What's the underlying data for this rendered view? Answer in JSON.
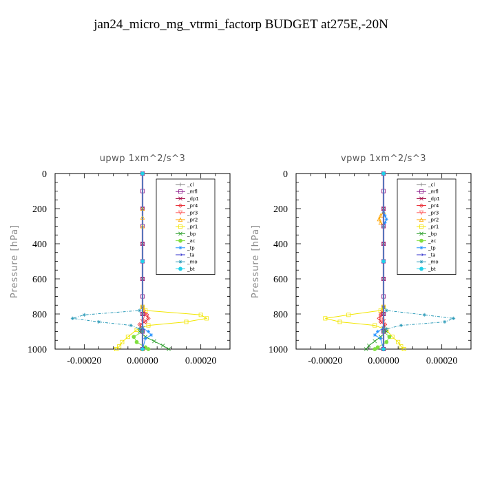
{
  "figure": {
    "title": "jan24_micro_mg_vtrmi_factorp  BUDGET at275E,-20N"
  },
  "chart_data": [
    {
      "type": "line",
      "title": "upwp   1xm^2/s^3",
      "ylabel": "Pressure [hPa]",
      "xlabel": "",
      "xlim": [
        -0.0003,
        0.0003
      ],
      "ylim": [
        1000,
        0
      ],
      "xticks": [
        "-0.00020",
        "0.00000",
        "0.00020"
      ],
      "xtick_values": [
        -0.0002,
        0,
        0.0002
      ],
      "yticks": [
        "0",
        "200",
        "400",
        "600",
        "800",
        "1000"
      ],
      "ytick_values": [
        0,
        200,
        400,
        600,
        800,
        1000
      ],
      "grid": false,
      "legend_position": "top-right",
      "series": [
        {
          "name": "_cl",
          "color": "#7f7f7f",
          "marker": "plus",
          "points": [
            [
              0,
              0
            ],
            [
              0,
              200
            ],
            [
              0,
              400
            ],
            [
              0,
              600
            ],
            [
              0,
              800
            ],
            [
              0,
              1000
            ]
          ]
        },
        {
          "name": "_mfl",
          "color": "#8b1a8b",
          "marker": "square",
          "points": [
            [
              0,
              0
            ],
            [
              0,
              100
            ],
            [
              0,
              200
            ],
            [
              0,
              300
            ],
            [
              0,
              400
            ],
            [
              0,
              500
            ],
            [
              0,
              600
            ],
            [
              0,
              700
            ],
            [
              0,
              800
            ],
            [
              0,
              900
            ],
            [
              0,
              1000
            ]
          ]
        },
        {
          "name": "_dp1",
          "color": "#a0003c",
          "marker": "x",
          "points": [
            [
              0,
              0
            ],
            [
              0,
              200
            ],
            [
              0,
              400
            ],
            [
              0,
              600
            ],
            [
              0,
              800
            ],
            [
              0,
              1000
            ]
          ]
        },
        {
          "name": "_pr4",
          "color": "#e8222a",
          "marker": "diamond",
          "points": [
            [
              0,
              760
            ],
            [
              5e-06,
              780
            ],
            [
              1.5e-05,
              805
            ],
            [
              2e-05,
              825
            ],
            [
              1e-05,
              845
            ],
            [
              -1e-05,
              860
            ],
            [
              -5e-06,
              880
            ],
            [
              0,
              900
            ],
            [
              0,
              1000
            ]
          ]
        },
        {
          "name": "_pr3",
          "color": "#ff6666",
          "marker": "triangle-down",
          "points": [
            [
              0,
              760
            ],
            [
              1e-05,
              800
            ],
            [
              0,
              840
            ],
            [
              0,
              900
            ],
            [
              0,
              1000
            ]
          ]
        },
        {
          "name": "_pr2",
          "color": "#ffa500",
          "marker": "triangle-up",
          "points": [
            [
              0,
              200
            ],
            [
              0,
              250
            ],
            [
              0,
              300
            ],
            [
              0,
              760
            ],
            [
              0,
              1000
            ]
          ]
        },
        {
          "name": "_pr1",
          "color": "#f2e600",
          "marker": "square",
          "points": [
            [
              0,
              760
            ],
            [
              1e-05,
              780
            ],
            [
              0.0002,
              805
            ],
            [
              0.00022,
              825
            ],
            [
              0.00015,
              845
            ],
            [
              2e-05,
              865
            ],
            [
              -2e-05,
              890
            ],
            [
              -5e-05,
              930
            ],
            [
              -7e-05,
              960
            ],
            [
              -8e-05,
              985
            ],
            [
              -9e-05,
              1000
            ]
          ]
        },
        {
          "name": "_bp",
          "color": "#2a9d2a",
          "marker": "x",
          "points": [
            [
              0,
              880
            ],
            [
              -1e-05,
              900
            ],
            [
              1e-05,
              930
            ],
            [
              4e-05,
              955
            ],
            [
              7e-05,
              980
            ],
            [
              9e-05,
              1000
            ]
          ]
        },
        {
          "name": "_ac",
          "color": "#7fdf3f",
          "marker": "circle",
          "points": [
            [
              0,
              900
            ],
            [
              -3e-05,
              930
            ],
            [
              -2e-05,
              960
            ],
            [
              1e-05,
              990
            ],
            [
              2e-05,
              1000
            ]
          ]
        },
        {
          "name": "_tp",
          "color": "#1f8fff",
          "marker": "star",
          "points": [
            [
              0,
              880
            ],
            [
              2e-05,
              900
            ],
            [
              3e-05,
              920
            ],
            [
              1e-05,
              940
            ],
            [
              0,
              1000
            ]
          ]
        },
        {
          "name": "_ta",
          "color": "#3333cc",
          "marker": "arrow",
          "points": [
            [
              0,
              0
            ],
            [
              0,
              500
            ],
            [
              0,
              1000
            ]
          ]
        },
        {
          "name": "_mo",
          "color": "#2a9ab8",
          "marker": "star",
          "points": [
            [
              0,
              760
            ],
            [
              -1e-05,
              780
            ],
            [
              -0.0002,
              805
            ],
            [
              -0.00024,
              825
            ],
            [
              -0.00015,
              845
            ],
            [
              -4e-05,
              865
            ],
            [
              -1e-05,
              885
            ],
            [
              0,
              900
            ],
            [
              0,
              1000
            ]
          ]
        },
        {
          "name": "_bt",
          "color": "#20d0e8",
          "marker": "circle",
          "points": [
            [
              0,
              0
            ],
            [
              0,
              500
            ],
            [
              0,
              1000
            ]
          ]
        }
      ]
    },
    {
      "type": "line",
      "title": "vpwp   1xm^2/s^3",
      "ylabel": "Pressure [hPa]",
      "xlabel": "",
      "xlim": [
        -0.0003,
        0.0003
      ],
      "ylim": [
        1000,
        0
      ],
      "xticks": [
        "-0.00020",
        "0.00000",
        "0.00020"
      ],
      "xtick_values": [
        -0.0002,
        0,
        0.0002
      ],
      "yticks": [
        "0",
        "200",
        "400",
        "600",
        "800",
        "1000"
      ],
      "ytick_values": [
        0,
        200,
        400,
        600,
        800,
        1000
      ],
      "grid": false,
      "legend_position": "top-right",
      "series": [
        {
          "name": "_cl",
          "color": "#7f7f7f",
          "marker": "plus",
          "points": [
            [
              0,
              0
            ],
            [
              0,
              200
            ],
            [
              0,
              400
            ],
            [
              0,
              600
            ],
            [
              0,
              800
            ],
            [
              0,
              1000
            ]
          ]
        },
        {
          "name": "_mfl",
          "color": "#8b1a8b",
          "marker": "square",
          "points": [
            [
              0,
              0
            ],
            [
              0,
              100
            ],
            [
              0,
              200
            ],
            [
              0,
              300
            ],
            [
              0,
              400
            ],
            [
              0,
              500
            ],
            [
              0,
              600
            ],
            [
              0,
              700
            ],
            [
              0,
              800
            ],
            [
              0,
              900
            ],
            [
              0,
              1000
            ]
          ]
        },
        {
          "name": "_dp1",
          "color": "#a0003c",
          "marker": "x",
          "points": [
            [
              0,
              0
            ],
            [
              0,
              200
            ],
            [
              0,
              400
            ],
            [
              0,
              600
            ],
            [
              0,
              800
            ],
            [
              0,
              1000
            ]
          ]
        },
        {
          "name": "_pr4",
          "color": "#e8222a",
          "marker": "diamond",
          "points": [
            [
              0,
              760
            ],
            [
              -5e-06,
              780
            ],
            [
              -1e-05,
              805
            ],
            [
              -1.5e-05,
              825
            ],
            [
              -1e-05,
              845
            ],
            [
              5e-06,
              860
            ],
            [
              0,
              880
            ],
            [
              0,
              1000
            ]
          ]
        },
        {
          "name": "_pr3",
          "color": "#ff6666",
          "marker": "triangle-down",
          "points": [
            [
              0,
              760
            ],
            [
              -1e-05,
              800
            ],
            [
              0,
              840
            ],
            [
              0,
              1000
            ]
          ]
        },
        {
          "name": "_pr2",
          "color": "#ffa500",
          "marker": "triangle-up",
          "points": [
            [
              0,
              220
            ],
            [
              -1e-05,
              240
            ],
            [
              -1.5e-05,
              260
            ],
            [
              -1e-05,
              280
            ],
            [
              0,
              300
            ],
            [
              0,
              760
            ],
            [
              0,
              1000
            ]
          ]
        },
        {
          "name": "_pr1",
          "color": "#f2e600",
          "marker": "square",
          "points": [
            [
              0,
              760
            ],
            [
              -1e-05,
              780
            ],
            [
              -0.00012,
              805
            ],
            [
              -0.0002,
              825
            ],
            [
              -0.00015,
              845
            ],
            [
              -3e-05,
              865
            ],
            [
              1e-05,
              890
            ],
            [
              3e-05,
              930
            ],
            [
              5e-05,
              960
            ],
            [
              6e-05,
              985
            ],
            [
              7e-05,
              1000
            ]
          ]
        },
        {
          "name": "_bp",
          "color": "#2a9d2a",
          "marker": "x",
          "points": [
            [
              0,
              880
            ],
            [
              1e-05,
              900
            ],
            [
              -1e-05,
              930
            ],
            [
              -3e-05,
              955
            ],
            [
              -5e-05,
              980
            ],
            [
              -6e-05,
              1000
            ]
          ]
        },
        {
          "name": "_ac",
          "color": "#7fdf3f",
          "marker": "circle",
          "points": [
            [
              0,
              900
            ],
            [
              2e-05,
              930
            ],
            [
              1e-05,
              960
            ],
            [
              -2e-05,
              990
            ],
            [
              -3e-05,
              1000
            ]
          ]
        },
        {
          "name": "_tp",
          "color": "#1f8fff",
          "marker": "star",
          "points": [
            [
              0,
              220
            ],
            [
              5e-06,
              240
            ],
            [
              1e-05,
              260
            ],
            [
              5e-06,
              280
            ],
            [
              0,
              300
            ],
            [
              0,
              880
            ],
            [
              -2e-05,
              900
            ],
            [
              -3e-05,
              920
            ],
            [
              -1e-05,
              940
            ],
            [
              0,
              1000
            ]
          ]
        },
        {
          "name": "_ta",
          "color": "#3333cc",
          "marker": "arrow",
          "points": [
            [
              0,
              0
            ],
            [
              0,
              500
            ],
            [
              0,
              1000
            ]
          ]
        },
        {
          "name": "_mo",
          "color": "#2a9ab8",
          "marker": "star",
          "points": [
            [
              0,
              760
            ],
            [
              1e-05,
              780
            ],
            [
              0.00014,
              805
            ],
            [
              0.00024,
              825
            ],
            [
              0.00021,
              845
            ],
            [
              6e-05,
              865
            ],
            [
              1e-05,
              885
            ],
            [
              0,
              900
            ],
            [
              0,
              1000
            ]
          ]
        },
        {
          "name": "_bt",
          "color": "#20d0e8",
          "marker": "circle",
          "points": [
            [
              0,
              0
            ],
            [
              0,
              500
            ],
            [
              0,
              1000
            ]
          ]
        }
      ]
    }
  ]
}
